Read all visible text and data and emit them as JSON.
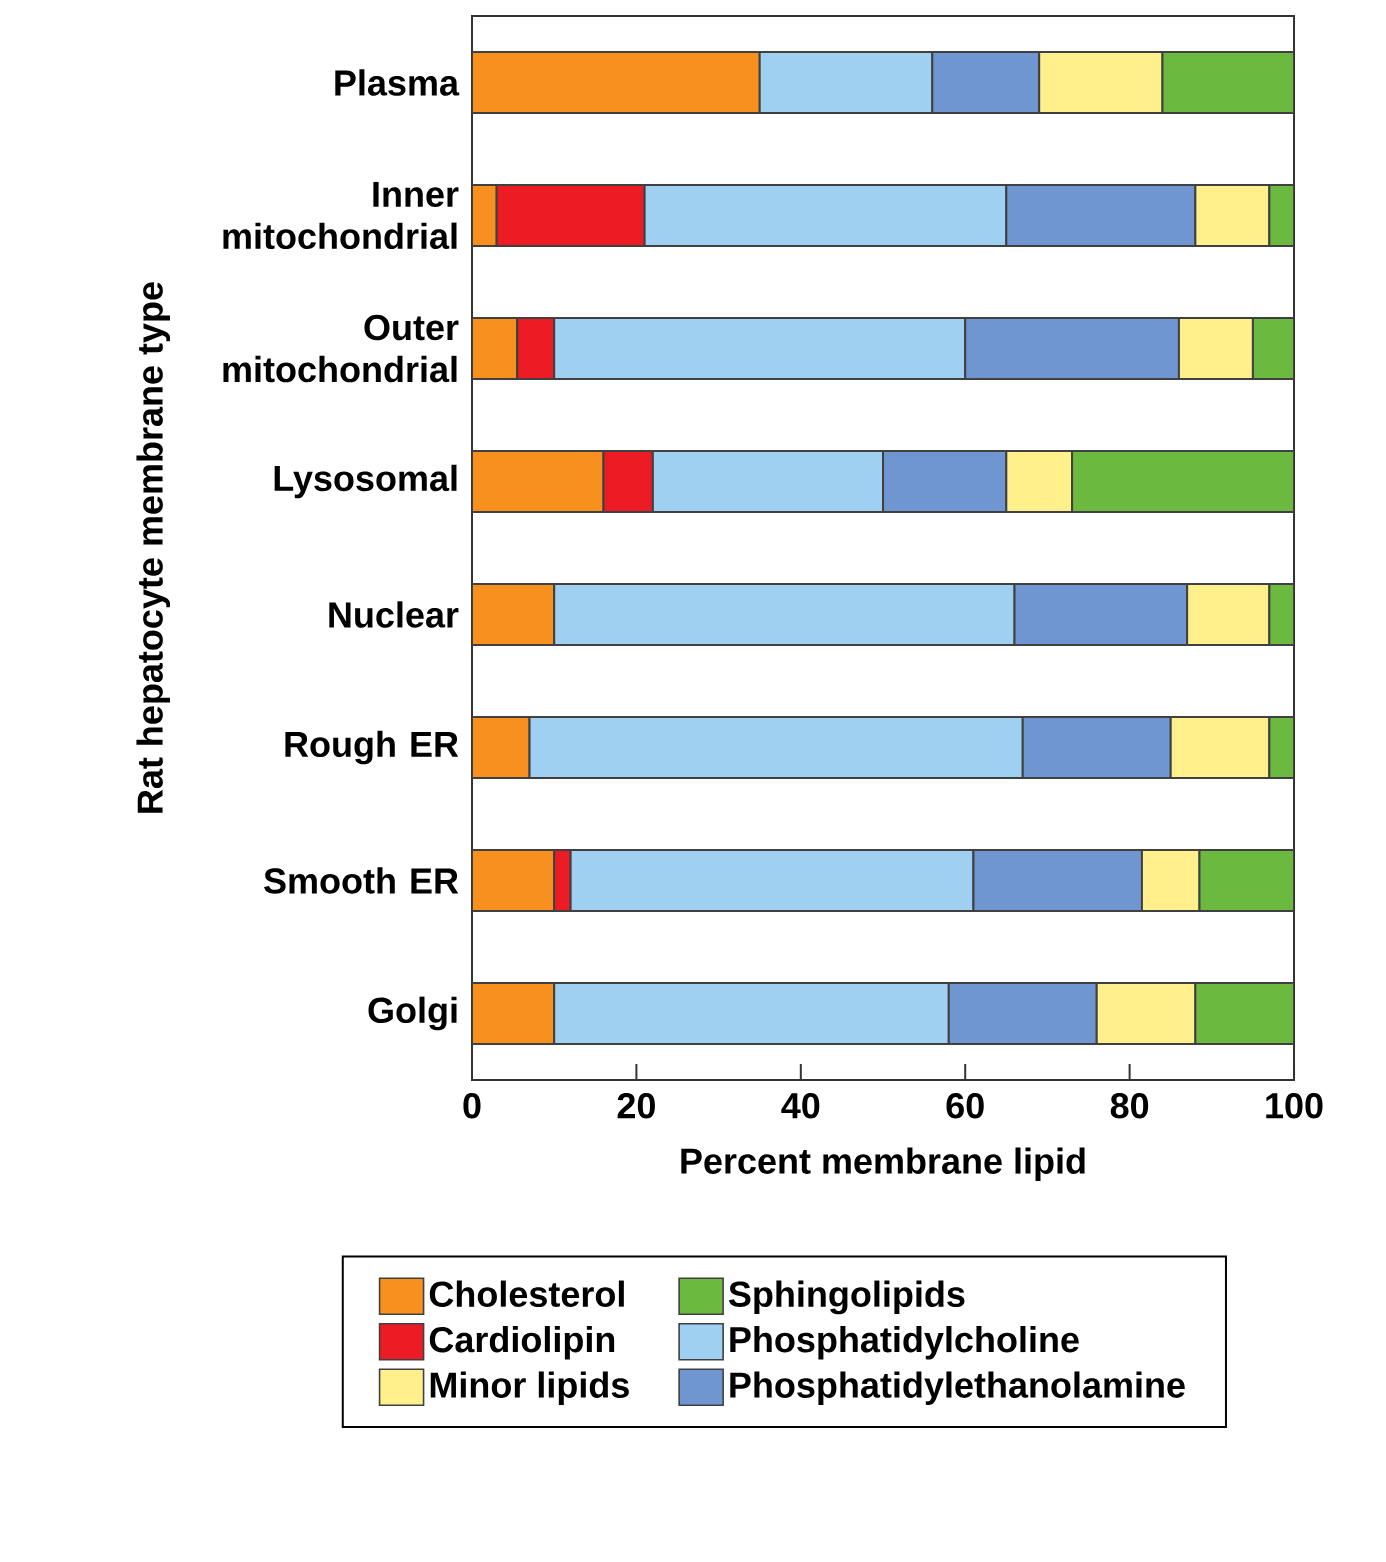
{
  "chart_data": {
    "type": "bar",
    "orientation": "horizontal",
    "stacked": true,
    "categories": [
      "Plasma",
      "Inner mitochondrial",
      "Outer mitochondrial",
      "Lysosomal",
      "Nuclear",
      "Rough ER",
      "Smooth ER",
      "Golgi"
    ],
    "xlabel": "Percent membrane lipid",
    "ylabel": "Rat hepatocyte membrane type",
    "xlim": [
      0,
      100
    ],
    "xticks": [
      0,
      20,
      40,
      60,
      80,
      100
    ],
    "legend": "bottom",
    "series": [
      {
        "name": "Cholesterol",
        "color": "#f7901e",
        "values": [
          35,
          3,
          5.5,
          16,
          10,
          7,
          10,
          10
        ]
      },
      {
        "name": "Cardiolipin",
        "color": "#ed1c24",
        "values": [
          null,
          18,
          4.5,
          6,
          null,
          null,
          2,
          null
        ]
      },
      {
        "name": "Phosphatidylcholine",
        "color": "#9fd0f2",
        "values": [
          21,
          44,
          50,
          28,
          56,
          60,
          49,
          48
        ]
      },
      {
        "name": "Phosphatidylethanolamine",
        "color": "#7096d2",
        "values": [
          13,
          23,
          26,
          15,
          21,
          18,
          20.5,
          18
        ]
      },
      {
        "name": "Minor lipids",
        "color": "#fff08c",
        "values": [
          15,
          9,
          9,
          8,
          10,
          12,
          7,
          12
        ]
      },
      {
        "name": "Sphingolipids",
        "color": "#6cb93f",
        "values": [
          16,
          3,
          5,
          27,
          3,
          3,
          11.5,
          12
        ]
      }
    ]
  }
}
